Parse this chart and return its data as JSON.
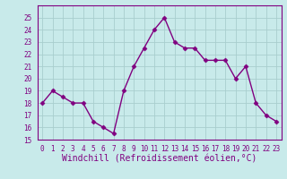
{
  "x": [
    0,
    1,
    2,
    3,
    4,
    5,
    6,
    7,
    8,
    9,
    10,
    11,
    12,
    13,
    14,
    15,
    16,
    17,
    18,
    19,
    20,
    21,
    22,
    23
  ],
  "y": [
    18,
    19,
    18.5,
    18,
    18,
    16.5,
    16,
    15.5,
    19,
    21,
    22.5,
    24,
    25,
    23,
    22.5,
    22.5,
    21.5,
    21.5,
    21.5,
    20,
    21,
    18,
    17,
    16.5
  ],
  "line_color": "#800080",
  "marker_color": "#800080",
  "bg_color": "#c8eaea",
  "grid_color": "#a8cece",
  "xlabel": "Windchill (Refroidissement éolien,°C)",
  "xlim": [
    -0.5,
    23.5
  ],
  "ylim": [
    15,
    26
  ],
  "yticks": [
    15,
    16,
    17,
    18,
    19,
    20,
    21,
    22,
    23,
    24,
    25
  ],
  "xticks": [
    0,
    1,
    2,
    3,
    4,
    5,
    6,
    7,
    8,
    9,
    10,
    11,
    12,
    13,
    14,
    15,
    16,
    17,
    18,
    19,
    20,
    21,
    22,
    23
  ],
  "tick_label_fontsize": 5.5,
  "xlabel_fontsize": 7.0,
  "line_width": 1.0,
  "marker_size": 2.5
}
